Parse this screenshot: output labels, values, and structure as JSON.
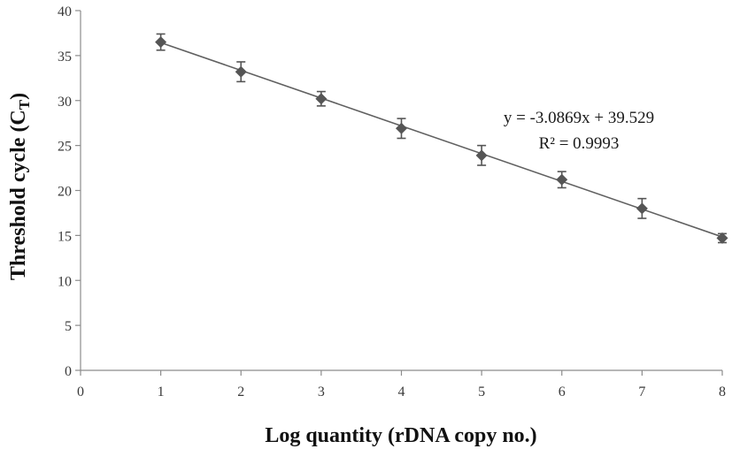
{
  "chart_data": {
    "type": "scatter",
    "title": "",
    "xlabel": "Log quantity (rDNA copy no.)",
    "ylabel_main": "Threshold cycle (C",
    "ylabel_sub": "T",
    "ylabel_close": ")",
    "xlim": [
      0,
      8
    ],
    "ylim": [
      0,
      40
    ],
    "x_ticks": [
      0,
      1,
      2,
      3,
      4,
      5,
      6,
      7,
      8
    ],
    "y_ticks": [
      0,
      5,
      10,
      15,
      20,
      25,
      30,
      35,
      40
    ],
    "grid": false,
    "legend": "none",
    "series": [
      {
        "x": [
          1,
          2,
          3,
          4,
          5,
          6,
          7,
          8
        ],
        "y": [
          36.5,
          33.2,
          30.2,
          26.9,
          23.9,
          21.2,
          18.0,
          14.7
        ],
        "error": [
          0.9,
          1.1,
          0.8,
          1.1,
          1.1,
          0.9,
          1.1,
          0.5
        ]
      }
    ],
    "trendline": {
      "slope": -3.0869,
      "intercept": 39.529,
      "x_range": [
        1,
        8
      ]
    },
    "annotations": {
      "equation": "y = -3.0869x + 39.529",
      "r_squared": "R² = 0.9993"
    },
    "colors": {
      "marker": "#555555",
      "line": "#606060",
      "axis": "#8c8c8c"
    }
  }
}
